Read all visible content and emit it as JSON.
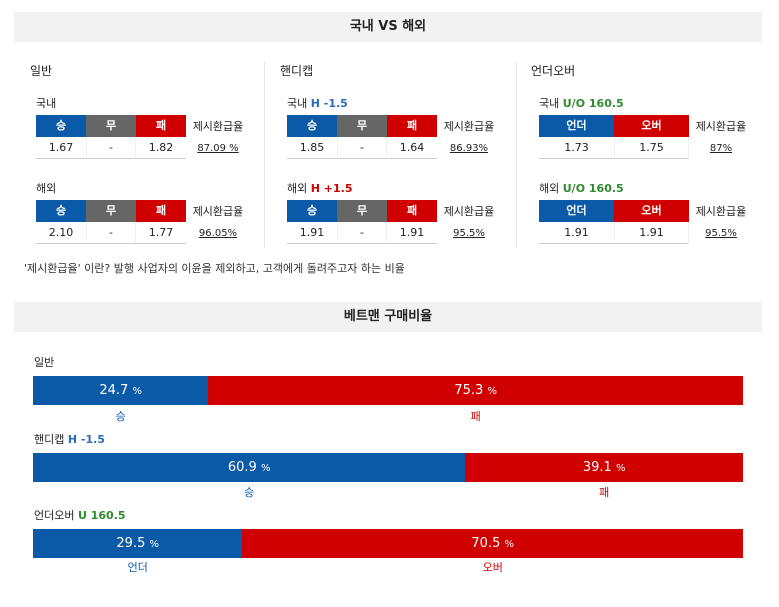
{
  "header1": "국내 VS 해외",
  "header2": "베트맨 구매비율",
  "sections": {
    "general": {
      "title": "일반",
      "domestic": {
        "label": "국내",
        "h1": "승",
        "h2": "무",
        "h3": "패",
        "v1": "1.67",
        "v2": "-",
        "v3": "1.82",
        "rate_label": "제시환급율",
        "rate": "87.09 %"
      },
      "overseas": {
        "label": "해외",
        "h1": "승",
        "h2": "무",
        "h3": "패",
        "v1": "2.10",
        "v2": "-",
        "v3": "1.77",
        "rate_label": "제시환급율",
        "rate": "96.05%"
      }
    },
    "handicap": {
      "title": "핸디캡",
      "domestic": {
        "label": "국내",
        "hcap": "H -1.5",
        "h1": "승",
        "h2": "무",
        "h3": "패",
        "v1": "1.85",
        "v2": "-",
        "v3": "1.64",
        "rate_label": "제시환급율",
        "rate": "86.93%"
      },
      "overseas": {
        "label": "해외",
        "hcap": "H +1.5",
        "h1": "승",
        "h2": "무",
        "h3": "패",
        "v1": "1.91",
        "v2": "-",
        "v3": "1.91",
        "rate_label": "제시환급율",
        "rate": "95.5%"
      }
    },
    "overunder": {
      "title": "언더오버",
      "domestic": {
        "label": "국내",
        "line": "U/O 160.5",
        "h1": "언더",
        "h2": "오버",
        "v1": "1.73",
        "v2": "1.75",
        "rate_label": "제시환급율",
        "rate": "87%"
      },
      "overseas": {
        "label": "해외",
        "line": "U/O 160.5",
        "h1": "언더",
        "h2": "오버",
        "v1": "1.91",
        "v2": "1.91",
        "rate_label": "제시환급율",
        "rate": "95.5%"
      }
    }
  },
  "note": "'제시환급율' 이란? 발행 사업자의 이윤을 제외하고, 고객에게 돌려주고자 하는 비율",
  "ratios": {
    "general": {
      "label": "일반",
      "left_pct": 24.7,
      "left_text": "24.7",
      "right_text": "75.3",
      "unit": "%",
      "left_name": "승",
      "right_name": "패"
    },
    "handicap": {
      "label": "핸디캡",
      "hcap": "H -1.5",
      "left_pct": 60.9,
      "left_text": "60.9",
      "right_text": "39.1",
      "unit": "%",
      "left_name": "승",
      "right_name": "패"
    },
    "overunder": {
      "label": "언더오버",
      "line": "U 160.5",
      "left_pct": 29.5,
      "left_text": "29.5",
      "right_text": "70.5",
      "unit": "%",
      "left_name": "언더",
      "right_name": "오버"
    }
  },
  "colors": {
    "blue": "#0b5aa8",
    "red": "#d10000",
    "gray": "#666666",
    "green": "#2e8b2e"
  }
}
